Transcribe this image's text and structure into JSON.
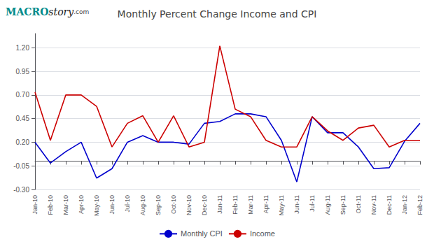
{
  "chart_data": {
    "type": "line",
    "title": "Monthly Percent Change Income and CPI",
    "categories": [
      "Jan-10",
      "Feb-10",
      "Mar-10",
      "Apr-10",
      "May-10",
      "Jun-10",
      "Jul-10",
      "Aug-10",
      "Sep-10",
      "Oct-10",
      "Nov-10",
      "Dec-10",
      "Jan-11",
      "Feb-11",
      "Mar-11",
      "Apr-11",
      "May-11",
      "Jun-11",
      "Jul-11",
      "Aug-11",
      "Sep-11",
      "Oct-11",
      "Nov-11",
      "Dec-11",
      "Jan-12",
      "Feb-12"
    ],
    "series": [
      {
        "name": "Monthly CPI",
        "color": "#0000cd",
        "values": [
          0.2,
          -0.02,
          0.1,
          0.2,
          -0.18,
          -0.08,
          0.2,
          0.27,
          0.2,
          0.2,
          0.18,
          0.4,
          0.42,
          0.5,
          0.5,
          0.47,
          0.22,
          -0.22,
          0.47,
          0.3,
          0.3,
          0.15,
          -0.08,
          -0.07,
          0.21,
          0.4
        ]
      },
      {
        "name": "Income",
        "color": "#cc0000",
        "values": [
          0.73,
          0.22,
          0.7,
          0.7,
          0.58,
          0.15,
          0.4,
          0.48,
          0.2,
          0.48,
          0.15,
          0.2,
          1.22,
          0.55,
          0.47,
          0.22,
          0.15,
          0.15,
          0.47,
          0.32,
          0.22,
          0.35,
          0.38,
          0.15,
          0.22,
          0.22
        ]
      }
    ],
    "ylim": [
      -0.3,
      1.35
    ],
    "yticks": [
      {
        "value": -0.3,
        "label": "-0.30"
      },
      -0.05,
      {
        "value": 0.2,
        "label": "0.20"
      },
      0.45,
      {
        "value": 0.7,
        "label": "0.70"
      },
      0.95,
      {
        "value": 1.2,
        "label": "1.20"
      }
    ],
    "grid": true,
    "legend": "bottom",
    "annotations": [
      "MACRO",
      "story",
      ".com"
    ]
  }
}
